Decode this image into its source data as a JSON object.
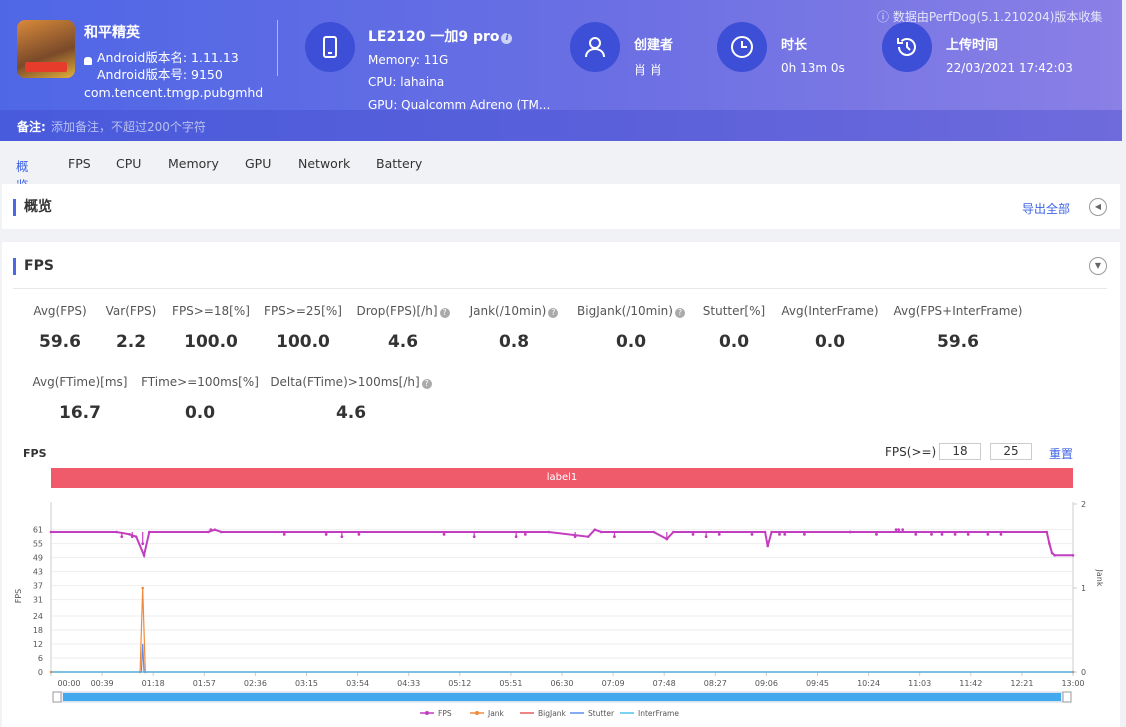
{
  "app": {
    "name": "和平精英",
    "android_version_name": "Android版本名: 1.11.13",
    "android_version_code": "Android版本号: 9150",
    "package": "com.tencent.tmgp.pubgmhd"
  },
  "device": {
    "name": "LE2120 一加9 pro",
    "info_mark": "i",
    "memory": "Memory: 11G",
    "cpu": "CPU: lahaina",
    "gpu": "GPU: Qualcomm Adreno (TM..."
  },
  "meta": [
    {
      "label": "创建者",
      "value": "肖 肖",
      "icon": "user-icon"
    },
    {
      "label": "时长",
      "value": "0h 13m 0s",
      "icon": "clock-icon"
    },
    {
      "label": "上传时间",
      "value": "22/03/2021 17:42:03",
      "icon": "history-icon"
    }
  ],
  "collect_note": "ⓘ 数据由PerfDog(5.1.210204)版本收集",
  "note": {
    "label": "备注:",
    "placeholder": "添加备注，不超过200个字符"
  },
  "tabs": [
    "概览",
    "FPS",
    "CPU",
    "Memory",
    "GPU",
    "Network",
    "Battery"
  ],
  "active_tab": 0,
  "overview": {
    "title": "概览",
    "export": "导出全部",
    "collapse_icon": "◀"
  },
  "fps_section": {
    "title": "FPS",
    "collapse_icon": "▼",
    "stats_row1": [
      {
        "label": "Avg(FPS)",
        "value": "59.6",
        "help": false
      },
      {
        "label": "Var(FPS)",
        "value": "2.2",
        "help": false
      },
      {
        "label": "FPS>=18[%]",
        "value": "100.0",
        "help": false
      },
      {
        "label": "FPS>=25[%]",
        "value": "100.0",
        "help": false
      },
      {
        "label": "Drop(FPS)[/h]",
        "value": "4.6",
        "help": true
      },
      {
        "label": "Jank(/10min)",
        "value": "0.8",
        "help": true
      },
      {
        "label": "BigJank(/10min)",
        "value": "0.0",
        "help": true
      },
      {
        "label": "Stutter[%]",
        "value": "0.0",
        "help": false
      },
      {
        "label": "Avg(InterFrame)",
        "value": "0.0",
        "help": false
      },
      {
        "label": "Avg(FPS+InterFrame)",
        "value": "59.6",
        "help": false
      }
    ],
    "stats_row2": [
      {
        "label": "Avg(FTime)[ms]",
        "value": "16.7",
        "help": false
      },
      {
        "label": "FTime>=100ms[%]",
        "value": "0.0",
        "help": false
      },
      {
        "label": "Delta(FTime)>100ms[/h]",
        "value": "4.6",
        "help": true
      }
    ],
    "help_mark": "?",
    "chart_title": "FPS",
    "threshold_label": "FPS(>=)",
    "threshold_values": [
      "18",
      "25"
    ],
    "reset": "重置",
    "label_bar": "label1"
  },
  "chart_data": {
    "type": "line",
    "title": "",
    "xlabel": "",
    "ylabel": "FPS",
    "y2label": "Jank",
    "x_ticks": [
      "00:00",
      "00:39",
      "01:18",
      "01:57",
      "02:36",
      "03:15",
      "03:54",
      "04:33",
      "05:12",
      "05:51",
      "06:30",
      "07:09",
      "07:48",
      "08:27",
      "09:06",
      "09:45",
      "10:24",
      "11:03",
      "11:42",
      "12:21",
      "13:00"
    ],
    "y_ticks": [
      0,
      6,
      12,
      18,
      24,
      31,
      37,
      43,
      49,
      55,
      61
    ],
    "y2_ticks": [
      0,
      1,
      2
    ],
    "ylim": [
      0,
      66
    ],
    "y2lim": [
      0,
      2
    ],
    "xlim_seconds": [
      0,
      780
    ],
    "series": [
      {
        "name": "FPS",
        "color": "#c23ec0",
        "baseline": 60,
        "points": [
          [
            0,
            60
          ],
          [
            50,
            60
          ],
          [
            60,
            59
          ],
          [
            65,
            58
          ],
          [
            71,
            50
          ],
          [
            75,
            60
          ],
          [
            120,
            60
          ],
          [
            125,
            61
          ],
          [
            130,
            60
          ],
          [
            380,
            60
          ],
          [
            410,
            58
          ],
          [
            415,
            61
          ],
          [
            420,
            60
          ],
          [
            460,
            60
          ],
          [
            470,
            57
          ],
          [
            475,
            60
          ],
          [
            545,
            60
          ],
          [
            547,
            54
          ],
          [
            550,
            60
          ],
          [
            760,
            60
          ],
          [
            762,
            55
          ],
          [
            764,
            51
          ],
          [
            766,
            50
          ],
          [
            780,
            50
          ]
        ],
        "dips": [
          [
            54,
            58
          ],
          [
            62,
            58
          ],
          [
            70,
            55
          ],
          [
            122,
            61
          ],
          [
            178,
            59
          ],
          [
            210,
            59
          ],
          [
            222,
            58
          ],
          [
            235,
            59
          ],
          [
            300,
            59
          ],
          [
            323,
            58
          ],
          [
            355,
            58
          ],
          [
            362,
            59
          ],
          [
            400,
            58
          ],
          [
            430,
            58
          ],
          [
            470,
            57
          ],
          [
            490,
            59
          ],
          [
            500,
            58
          ],
          [
            510,
            59
          ],
          [
            535,
            59
          ],
          [
            556,
            59
          ],
          [
            560,
            59
          ],
          [
            575,
            59
          ],
          [
            610,
            60
          ],
          [
            630,
            59
          ],
          [
            645,
            61
          ],
          [
            647,
            61
          ],
          [
            650,
            61
          ],
          [
            660,
            59
          ],
          [
            672,
            59
          ],
          [
            680,
            59
          ],
          [
            690,
            59
          ],
          [
            700,
            59
          ],
          [
            715,
            59
          ],
          [
            725,
            59
          ]
        ]
      },
      {
        "name": "Jank",
        "color": "#f08a3c",
        "points": [
          [
            0,
            0
          ],
          [
            68,
            0
          ],
          [
            70,
            1
          ],
          [
            72,
            0
          ],
          [
            780,
            0
          ]
        ]
      },
      {
        "name": "BigJank",
        "color": "#e85c5c",
        "points": [
          [
            0,
            0
          ],
          [
            780,
            0
          ]
        ]
      },
      {
        "name": "Stutter",
        "color": "#5b8ff0",
        "points": [
          [
            0,
            0
          ],
          [
            69,
            0
          ],
          [
            70,
            12
          ],
          [
            71,
            0
          ],
          [
            780,
            0
          ]
        ]
      },
      {
        "name": "InterFrame",
        "color": "#4ec3f0",
        "points": [
          [
            0,
            0
          ],
          [
            780,
            0
          ]
        ]
      }
    ],
    "legend_position": "bottom",
    "grid": true
  },
  "colors": {
    "accent": "#3f63e6",
    "header_start": "#4f67e6",
    "header_end": "#8a80e6",
    "label_bar": "#ef5b6b",
    "fps_line": "#c23ec0",
    "scroll": "#42a9ee"
  }
}
